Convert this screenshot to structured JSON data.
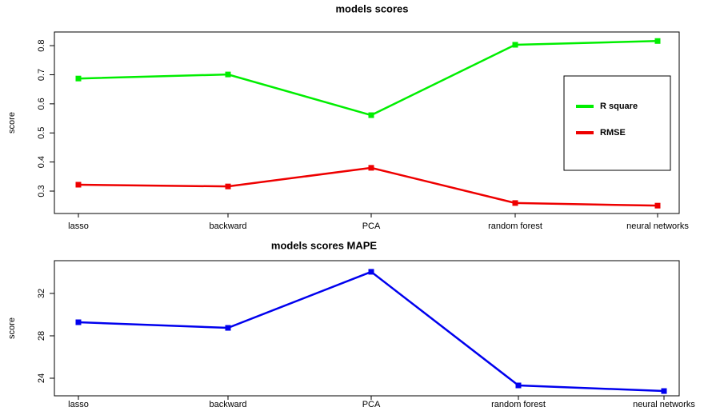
{
  "chart_data": [
    {
      "type": "line",
      "title": "models scores",
      "ylabel": "score",
      "categories": [
        "lasso",
        "backward",
        "PCA",
        "random forest",
        "neural networks"
      ],
      "series": [
        {
          "name": "R square",
          "color": "#00ee00",
          "values": [
            0.687,
            0.701,
            0.561,
            0.803,
            0.816
          ]
        },
        {
          "name": "RMSE",
          "color": "#ee0000",
          "values": [
            0.322,
            0.316,
            0.38,
            0.259,
            0.25
          ]
        }
      ],
      "ylim": [
        0.223,
        0.847
      ],
      "yticks": [
        0.3,
        0.4,
        0.5,
        0.6,
        0.7,
        0.8
      ],
      "legend": "right"
    },
    {
      "type": "line",
      "title": "models scores   MAPE",
      "ylabel": "score",
      "categories": [
        "lasso",
        "backward",
        "PCA",
        "random forest",
        "neural networks"
      ],
      "series": [
        {
          "color": "#0000ee",
          "values": [
            29.28,
            28.75,
            34.04,
            23.32,
            22.79
          ]
        }
      ],
      "ylim": [
        22.34,
        35.09
      ],
      "yticks": [
        24,
        28,
        32
      ]
    }
  ]
}
